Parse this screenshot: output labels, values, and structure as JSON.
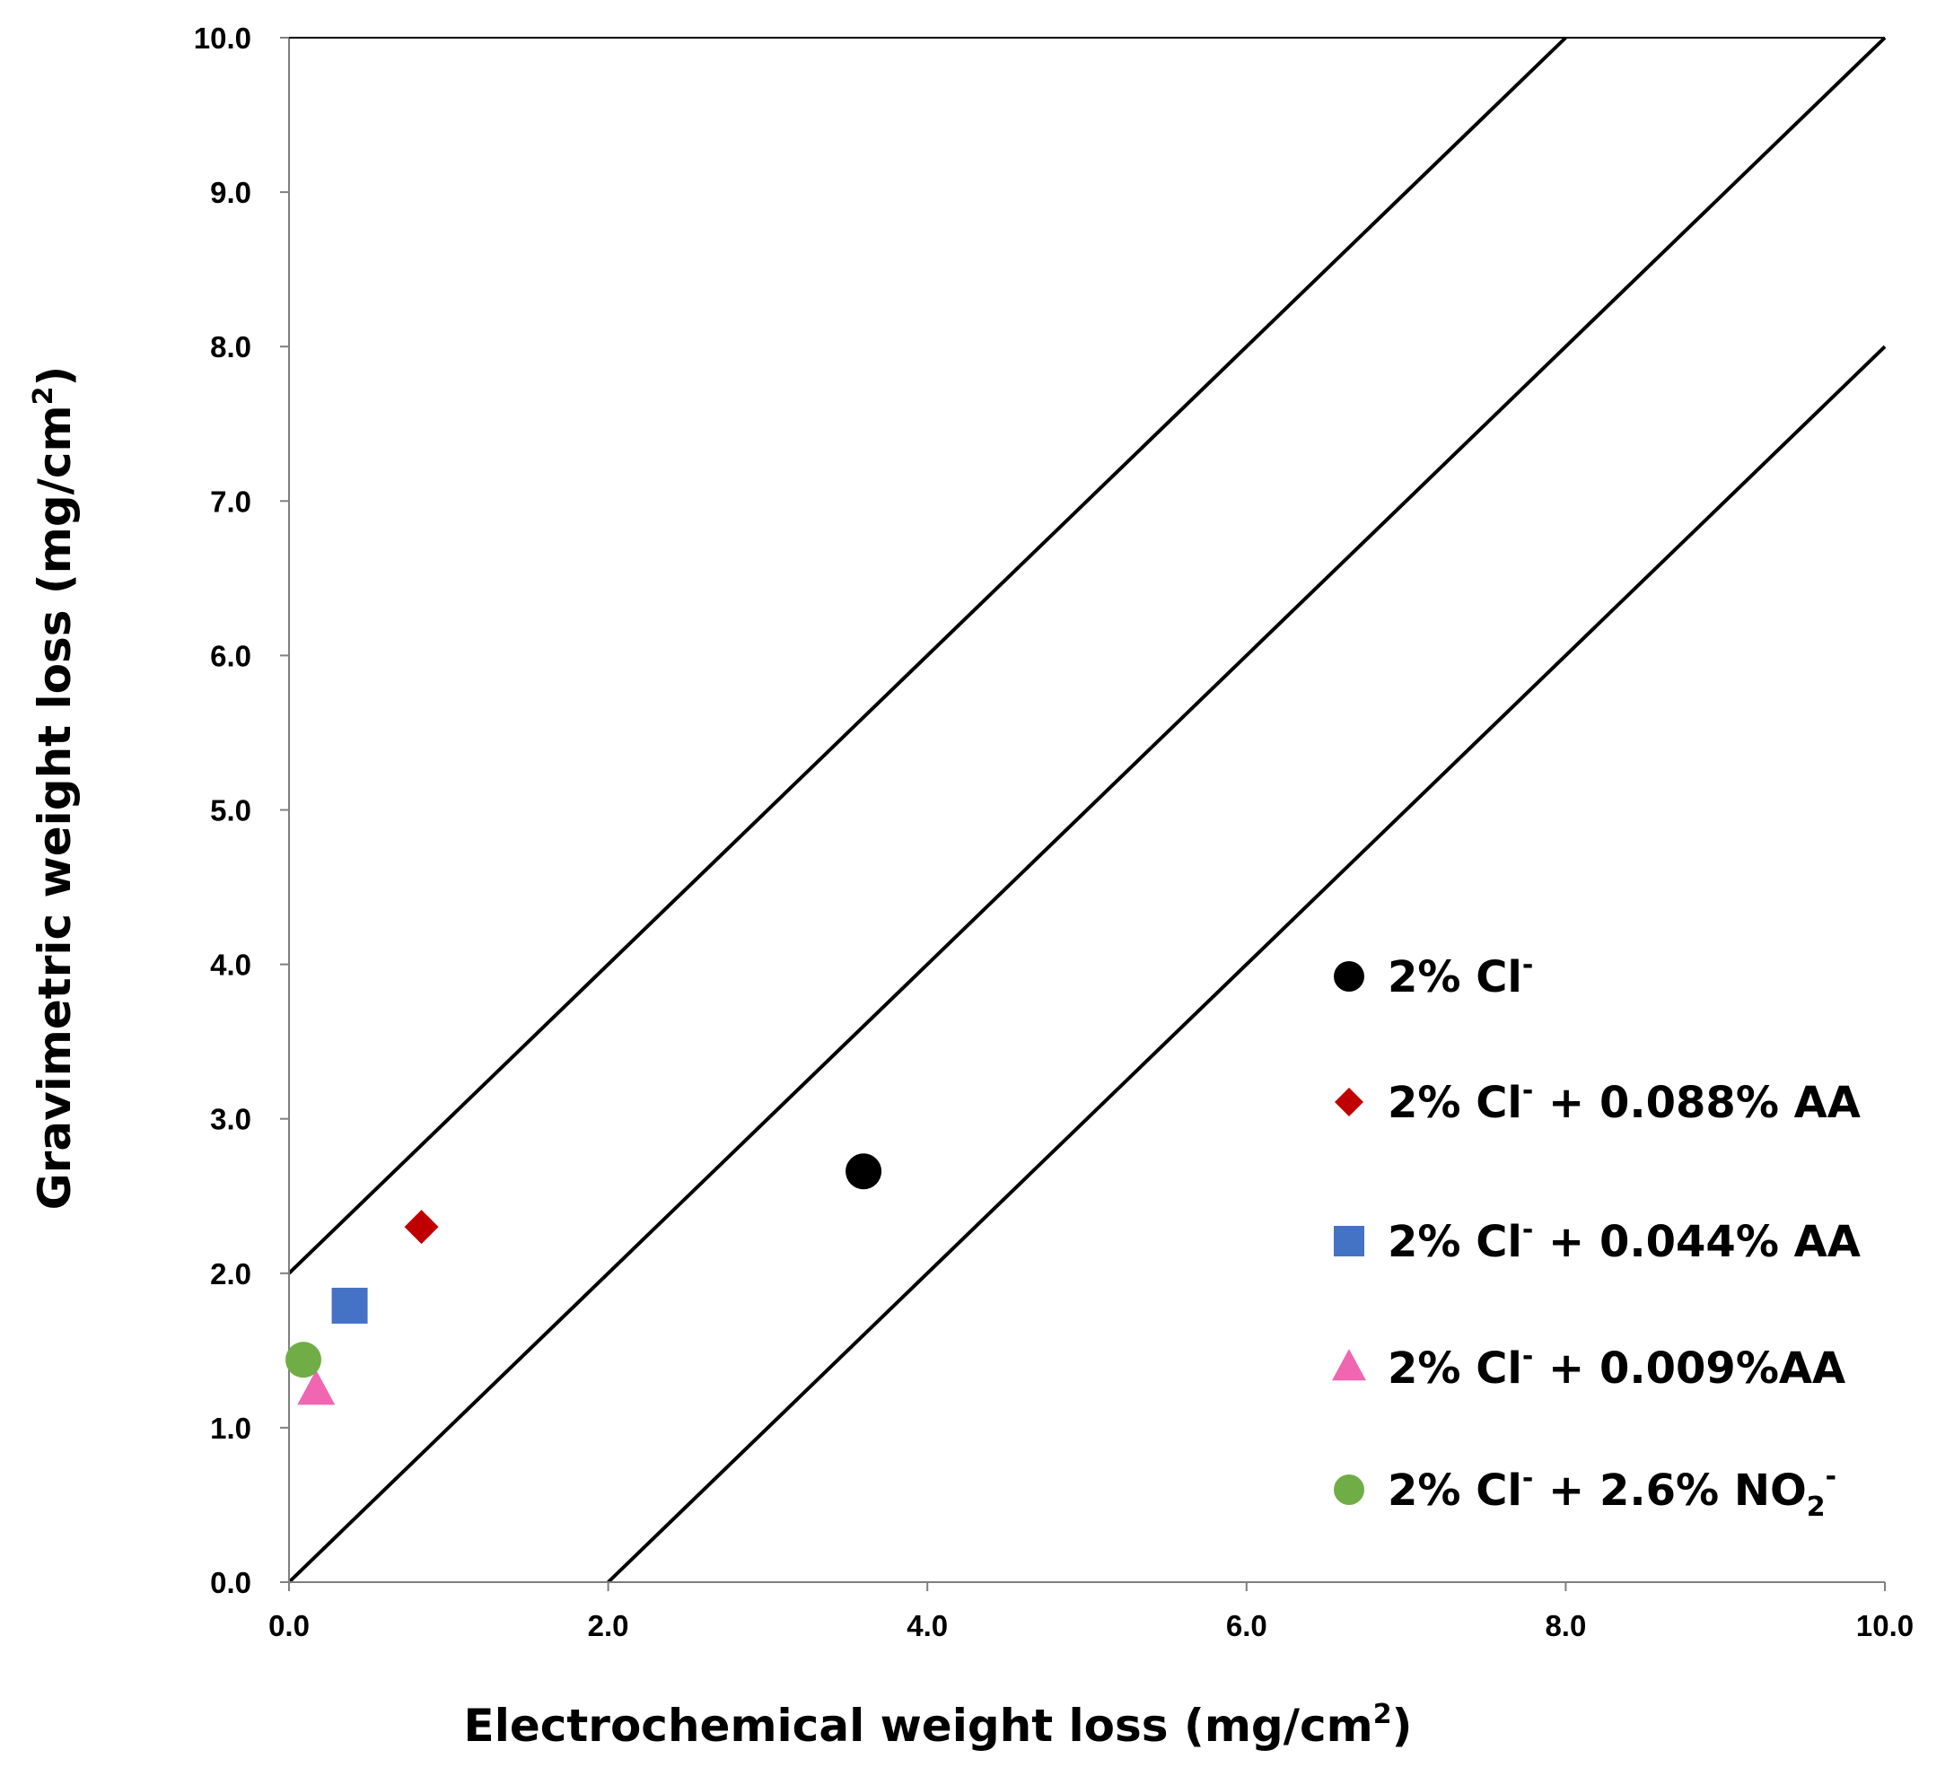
{
  "chart_data": {
    "type": "scatter",
    "title": "",
    "xlabel": {
      "text": "Electrochemical weight loss (mg/cm",
      "sup": "2",
      "tail": ")"
    },
    "ylabel": {
      "text": "Gravimetric weight loss (mg/cm",
      "sup": "2",
      "tail": ")"
    },
    "xlim": [
      0,
      10
    ],
    "ylim": [
      0,
      10
    ],
    "x_ticks": [
      "0.0",
      "2.0",
      "4.0",
      "6.0",
      "8.0",
      "10.0"
    ],
    "x_tick_values": [
      0,
      2,
      4,
      6,
      8,
      10
    ],
    "y_ticks": [
      "0.0",
      "1.0",
      "2.0",
      "3.0",
      "4.0",
      "5.0",
      "6.0",
      "7.0",
      "8.0",
      "9.0",
      "10.0"
    ],
    "y_tick_values": [
      0,
      1,
      2,
      3,
      4,
      5,
      6,
      7,
      8,
      9,
      10
    ],
    "grid": false,
    "legend_position": "right",
    "reference_lines": [
      {
        "name": "y = x + 2",
        "points": [
          [
            0,
            2
          ],
          [
            8,
            10
          ]
        ]
      },
      {
        "name": "y = x",
        "points": [
          [
            0,
            0
          ],
          [
            10,
            10
          ]
        ]
      },
      {
        "name": "y = x - 2",
        "points": [
          [
            2,
            0
          ],
          [
            10,
            8
          ]
        ]
      }
    ],
    "series": [
      {
        "name": "2% Cl",
        "marker": "circle",
        "color": "#000000",
        "label": {
          "base": "2% Cl",
          "sup": "-",
          "rest": ""
        },
        "x": [
          3.6
        ],
        "y": [
          2.66
        ]
      },
      {
        "name": "2% Cl + 0.088% AA",
        "marker": "diamond",
        "color": "#c00000",
        "label": {
          "base": "2% Cl",
          "sup": "-",
          "rest": " + 0.088% AA"
        },
        "x": [
          0.83
        ],
        "y": [
          2.3
        ]
      },
      {
        "name": "2% Cl + 0.044% AA",
        "marker": "square",
        "color": "#4472c4",
        "label": {
          "base": "2% Cl",
          "sup": "-",
          "rest": " + 0.044% AA"
        },
        "x": [
          0.38
        ],
        "y": [
          1.79
        ]
      },
      {
        "name": "2% Cl + 0.009%AA",
        "marker": "triangle",
        "color": "#f066b0",
        "label": {
          "base": "2% Cl",
          "sup": "-",
          "rest": " + 0.009%AA"
        },
        "x": [
          0.17
        ],
        "y": [
          1.24
        ]
      },
      {
        "name": "2% Cl + 2.6% NO2",
        "marker": "circle",
        "color": "#70ad47",
        "label": {
          "base": "2% Cl",
          "sup": "-",
          "rest": " + 2.6% NO",
          "sub2": "2",
          "sup2": "-"
        },
        "x": [
          0.09
        ],
        "y": [
          1.44
        ]
      }
    ]
  }
}
